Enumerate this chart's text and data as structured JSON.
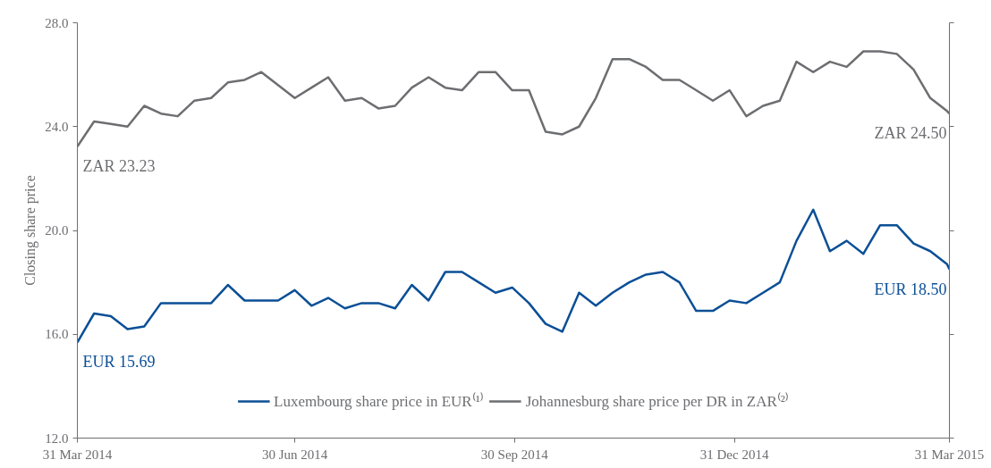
{
  "chart_data": {
    "type": "line",
    "ylabel": "Closing share price",
    "x": [
      "2014-03-31",
      "2014-04-07",
      "2014-04-14",
      "2014-04-21",
      "2014-04-28",
      "2014-05-05",
      "2014-05-12",
      "2014-05-19",
      "2014-05-26",
      "2014-06-02",
      "2014-06-09",
      "2014-06-16",
      "2014-06-23",
      "2014-06-30",
      "2014-07-07",
      "2014-07-14",
      "2014-07-21",
      "2014-07-28",
      "2014-08-04",
      "2014-08-11",
      "2014-08-18",
      "2014-08-25",
      "2014-09-01",
      "2014-09-08",
      "2014-09-15",
      "2014-09-22",
      "2014-09-29",
      "2014-10-06",
      "2014-10-13",
      "2014-10-20",
      "2014-10-27",
      "2014-11-03",
      "2014-11-10",
      "2014-11-17",
      "2014-11-24",
      "2014-12-01",
      "2014-12-08",
      "2014-12-15",
      "2014-12-22",
      "2014-12-29",
      "2015-01-05",
      "2015-01-12",
      "2015-01-19",
      "2015-01-26",
      "2015-02-02",
      "2015-02-09",
      "2015-02-16",
      "2015-02-23",
      "2015-03-02",
      "2015-03-09",
      "2015-03-16",
      "2015-03-23",
      "2015-03-30",
      "2015-03-31"
    ],
    "series": [
      {
        "name": "Luxembourg share price in EUR⁽¹⁾",
        "color": "#0b4f96",
        "values": [
          15.69,
          16.8,
          16.7,
          16.2,
          16.3,
          17.2,
          17.2,
          17.2,
          17.2,
          17.9,
          17.3,
          17.3,
          17.3,
          17.7,
          17.1,
          17.4,
          17.0,
          17.2,
          17.2,
          17.0,
          17.9,
          17.3,
          18.4,
          18.4,
          18.0,
          17.6,
          17.8,
          17.2,
          16.4,
          16.1,
          17.6,
          17.1,
          17.6,
          18.0,
          18.3,
          18.4,
          18.0,
          16.9,
          16.9,
          17.3,
          17.2,
          17.6,
          18.0,
          19.6,
          20.8,
          19.2,
          19.6,
          19.1,
          20.2,
          20.2,
          19.5,
          19.2,
          18.7,
          18.5
        ]
      },
      {
        "name": "Johannesburg share price per DR in ZAR⁽²⁾",
        "color": "#6d6e71",
        "values": [
          23.23,
          24.2,
          24.1,
          24.0,
          24.8,
          24.5,
          24.4,
          25.0,
          25.1,
          25.7,
          25.8,
          26.1,
          25.6,
          25.1,
          25.5,
          25.9,
          25.0,
          25.1,
          24.7,
          24.8,
          25.5,
          25.9,
          25.5,
          25.4,
          26.1,
          26.1,
          25.4,
          25.4,
          23.8,
          23.7,
          24.0,
          25.1,
          26.6,
          26.6,
          26.3,
          25.8,
          25.8,
          25.4,
          25.0,
          25.4,
          24.4,
          24.8,
          25.0,
          26.5,
          26.1,
          26.5,
          26.3,
          26.9,
          26.9,
          26.8,
          26.2,
          25.1,
          24.6,
          24.5
        ]
      }
    ],
    "xlim": [
      "2014-03-31",
      "2015-03-31"
    ],
    "xticks": [
      {
        "value": "2014-03-31",
        "label": "31 Mar 2014"
      },
      {
        "value": "2014-06-30",
        "label": "30 Jun 2014"
      },
      {
        "value": "2014-09-30",
        "label": "30 Sep 2014"
      },
      {
        "value": "2014-12-31",
        "label": "31 Dec 2014"
      },
      {
        "value": "2015-03-31",
        "label": "31 Mar 2015"
      }
    ],
    "ylim": [
      12,
      28
    ],
    "yticks": [
      {
        "value": 12,
        "label": "12.0"
      },
      {
        "value": 16,
        "label": "16.0"
      },
      {
        "value": 20,
        "label": "20.0"
      },
      {
        "value": 24,
        "label": "24.0"
      },
      {
        "value": 28,
        "label": "28.0"
      }
    ],
    "annotations": [
      {
        "text": "ZAR 23.23",
        "x": "2014-03-31",
        "y": 23.23
      },
      {
        "text": "ZAR 24.50",
        "x": "2015-03-31",
        "y": 24.5
      },
      {
        "text": "EUR 15.69",
        "x": "2014-03-31",
        "y": 15.69
      },
      {
        "text": "EUR 18.50",
        "x": "2015-03-31",
        "y": 18.5
      }
    ],
    "grid": false,
    "legend": "bottom",
    "line_style": "solid"
  }
}
